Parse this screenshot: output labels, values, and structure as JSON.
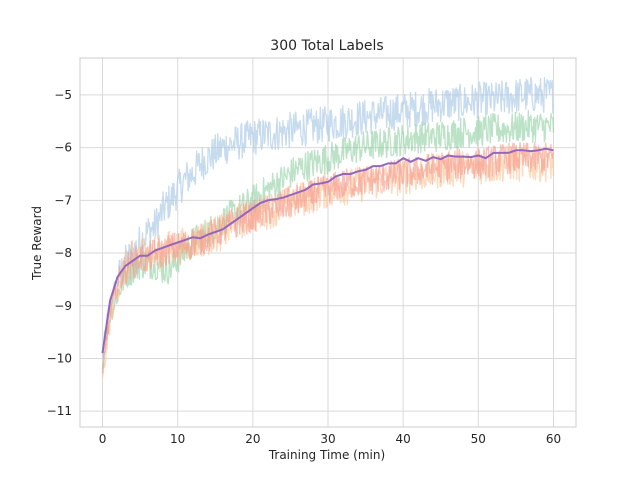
{
  "chart_data": {
    "type": "line",
    "title": "300 Total Labels",
    "xlabel": "Training Time (min)",
    "ylabel": "True Reward",
    "xlim": [
      -3,
      63
    ],
    "ylim": [
      -11.3,
      -4.3
    ],
    "xticks": [
      0,
      10,
      20,
      30,
      40,
      50,
      60
    ],
    "yticks": [
      -11,
      -10,
      -9,
      -8,
      -7,
      -6,
      -5
    ],
    "grid": true,
    "legend": "none",
    "series": [
      {
        "color": "#a9c8e6",
        "opacity": 0.65,
        "points": [
          [
            0,
            -10.0
          ],
          [
            0.5,
            -9.4
          ],
          [
            1,
            -9.0
          ],
          [
            2,
            -8.5
          ],
          [
            3,
            -8.2
          ],
          [
            4,
            -8.0
          ],
          [
            5,
            -7.8
          ],
          [
            6,
            -7.6
          ],
          [
            7,
            -7.5
          ],
          [
            8,
            -7.2
          ],
          [
            9,
            -7.0
          ],
          [
            10,
            -6.8
          ],
          [
            11,
            -6.6
          ],
          [
            12,
            -6.5
          ],
          [
            13,
            -6.3
          ],
          [
            14,
            -6.2
          ],
          [
            15,
            -6.1
          ],
          [
            16,
            -6.0
          ],
          [
            18,
            -5.9
          ],
          [
            20,
            -5.8
          ],
          [
            22,
            -5.75
          ],
          [
            24,
            -5.7
          ],
          [
            26,
            -5.65
          ],
          [
            28,
            -5.6
          ],
          [
            30,
            -5.55
          ],
          [
            32,
            -5.5
          ],
          [
            34,
            -5.45
          ],
          [
            36,
            -5.4
          ],
          [
            38,
            -5.35
          ],
          [
            40,
            -5.3
          ],
          [
            42,
            -5.25
          ],
          [
            44,
            -5.2
          ],
          [
            46,
            -5.15
          ],
          [
            48,
            -5.15
          ],
          [
            50,
            -5.1
          ],
          [
            52,
            -5.1
          ],
          [
            54,
            -5.05
          ],
          [
            56,
            -5.0
          ],
          [
            58,
            -5.0
          ],
          [
            60,
            -5.0
          ]
        ],
        "noise": 0.35
      },
      {
        "color": "#8ecfa0",
        "opacity": 0.6,
        "points": [
          [
            0,
            -10.2
          ],
          [
            0.5,
            -9.6
          ],
          [
            1,
            -9.2
          ],
          [
            2,
            -8.8
          ],
          [
            3,
            -8.4
          ],
          [
            4,
            -8.3
          ],
          [
            5,
            -8.2
          ],
          [
            6,
            -8.2
          ],
          [
            7,
            -8.2
          ],
          [
            8,
            -8.3
          ],
          [
            9,
            -8.3
          ],
          [
            10,
            -8.1
          ],
          [
            12,
            -7.8
          ],
          [
            14,
            -7.6
          ],
          [
            16,
            -7.4
          ],
          [
            18,
            -7.2
          ],
          [
            20,
            -7.0
          ],
          [
            22,
            -6.8
          ],
          [
            24,
            -6.6
          ],
          [
            26,
            -6.4
          ],
          [
            28,
            -6.3
          ],
          [
            30,
            -6.2
          ],
          [
            32,
            -6.1
          ],
          [
            34,
            -6.0
          ],
          [
            36,
            -5.95
          ],
          [
            38,
            -5.9
          ],
          [
            40,
            -5.85
          ],
          [
            42,
            -5.8
          ],
          [
            44,
            -5.8
          ],
          [
            46,
            -5.75
          ],
          [
            48,
            -5.7
          ],
          [
            50,
            -5.7
          ],
          [
            52,
            -5.65
          ],
          [
            54,
            -5.65
          ],
          [
            56,
            -5.6
          ],
          [
            58,
            -5.6
          ],
          [
            60,
            -5.6
          ]
        ],
        "noise": 0.3
      },
      {
        "color": "#fdc08e",
        "opacity": 0.6,
        "points": [
          [
            0,
            -10.5
          ],
          [
            0.5,
            -9.8
          ],
          [
            1,
            -9.3
          ],
          [
            2,
            -8.6
          ],
          [
            3,
            -8.3
          ],
          [
            4,
            -8.1
          ],
          [
            5,
            -8.0
          ],
          [
            6,
            -8.0
          ],
          [
            7,
            -8.0
          ],
          [
            8,
            -8.0
          ],
          [
            9,
            -7.9
          ],
          [
            10,
            -7.9
          ],
          [
            12,
            -7.8
          ],
          [
            14,
            -7.7
          ],
          [
            16,
            -7.6
          ],
          [
            18,
            -7.4
          ],
          [
            20,
            -7.3
          ],
          [
            22,
            -7.2
          ],
          [
            24,
            -7.1
          ],
          [
            26,
            -7.0
          ],
          [
            28,
            -6.9
          ],
          [
            30,
            -6.8
          ],
          [
            32,
            -6.75
          ],
          [
            34,
            -6.7
          ],
          [
            36,
            -6.65
          ],
          [
            38,
            -6.6
          ],
          [
            40,
            -6.55
          ],
          [
            42,
            -6.5
          ],
          [
            44,
            -6.45
          ],
          [
            46,
            -6.4
          ],
          [
            48,
            -6.4
          ],
          [
            50,
            -6.35
          ],
          [
            52,
            -6.35
          ],
          [
            54,
            -6.3
          ],
          [
            56,
            -6.3
          ],
          [
            58,
            -6.3
          ],
          [
            60,
            -6.3
          ]
        ],
        "noise": 0.35
      },
      {
        "color": "#f3978c",
        "opacity": 0.6,
        "points": [
          [
            0,
            -10.3
          ],
          [
            0.5,
            -9.7
          ],
          [
            1,
            -9.1
          ],
          [
            2,
            -8.6
          ],
          [
            3,
            -8.3
          ],
          [
            4,
            -8.2
          ],
          [
            5,
            -8.1
          ],
          [
            6,
            -8.1
          ],
          [
            7,
            -8.0
          ],
          [
            8,
            -8.0
          ],
          [
            9,
            -7.9
          ],
          [
            10,
            -7.9
          ],
          [
            12,
            -7.8
          ],
          [
            14,
            -7.7
          ],
          [
            16,
            -7.55
          ],
          [
            18,
            -7.4
          ],
          [
            20,
            -7.3
          ],
          [
            22,
            -7.2
          ],
          [
            24,
            -7.1
          ],
          [
            26,
            -7.0
          ],
          [
            28,
            -6.9
          ],
          [
            30,
            -6.8
          ],
          [
            32,
            -6.7
          ],
          [
            34,
            -6.65
          ],
          [
            36,
            -6.6
          ],
          [
            38,
            -6.55
          ],
          [
            40,
            -6.5
          ],
          [
            42,
            -6.45
          ],
          [
            44,
            -6.4
          ],
          [
            46,
            -6.35
          ],
          [
            48,
            -6.3
          ],
          [
            50,
            -6.3
          ],
          [
            52,
            -6.25
          ],
          [
            54,
            -6.2
          ],
          [
            56,
            -6.2
          ],
          [
            58,
            -6.2
          ],
          [
            60,
            -6.2
          ]
        ],
        "noise": 0.3
      },
      {
        "color": "#9467bd",
        "opacity": 1.0,
        "noise": 0,
        "points": [
          [
            0,
            -9.9
          ],
          [
            0.5,
            -9.4
          ],
          [
            1,
            -8.9
          ],
          [
            2,
            -8.45
          ],
          [
            3,
            -8.25
          ],
          [
            4,
            -8.15
          ],
          [
            5,
            -8.05
          ],
          [
            6,
            -8.05
          ],
          [
            7,
            -7.95
          ],
          [
            8,
            -7.9
          ],
          [
            9,
            -7.85
          ],
          [
            10,
            -7.8
          ],
          [
            11,
            -7.75
          ],
          [
            12,
            -7.7
          ],
          [
            13,
            -7.72
          ],
          [
            14,
            -7.65
          ],
          [
            15,
            -7.6
          ],
          [
            16,
            -7.55
          ],
          [
            17,
            -7.45
          ],
          [
            18,
            -7.35
          ],
          [
            19,
            -7.25
          ],
          [
            20,
            -7.15
          ],
          [
            21,
            -7.05
          ],
          [
            22,
            -7.0
          ],
          [
            23,
            -6.98
          ],
          [
            24,
            -6.95
          ],
          [
            25,
            -6.9
          ],
          [
            26,
            -6.85
          ],
          [
            27,
            -6.8
          ],
          [
            28,
            -6.7
          ],
          [
            29,
            -6.68
          ],
          [
            30,
            -6.65
          ],
          [
            31,
            -6.55
          ],
          [
            32,
            -6.5
          ],
          [
            33,
            -6.5
          ],
          [
            34,
            -6.45
          ],
          [
            35,
            -6.42
          ],
          [
            36,
            -6.35
          ],
          [
            37,
            -6.35
          ],
          [
            38,
            -6.3
          ],
          [
            39,
            -6.3
          ],
          [
            40,
            -6.2
          ],
          [
            41,
            -6.27
          ],
          [
            42,
            -6.2
          ],
          [
            43,
            -6.25
          ],
          [
            44,
            -6.18
          ],
          [
            45,
            -6.22
          ],
          [
            46,
            -6.15
          ],
          [
            47,
            -6.17
          ],
          [
            48,
            -6.17
          ],
          [
            49,
            -6.18
          ],
          [
            50,
            -6.15
          ],
          [
            51,
            -6.2
          ],
          [
            52,
            -6.1
          ],
          [
            53,
            -6.1
          ],
          [
            54,
            -6.1
          ],
          [
            55,
            -6.05
          ],
          [
            56,
            -6.05
          ],
          [
            57,
            -6.07
          ],
          [
            58,
            -6.05
          ],
          [
            59,
            -6.02
          ],
          [
            60,
            -6.05
          ]
        ]
      }
    ]
  }
}
